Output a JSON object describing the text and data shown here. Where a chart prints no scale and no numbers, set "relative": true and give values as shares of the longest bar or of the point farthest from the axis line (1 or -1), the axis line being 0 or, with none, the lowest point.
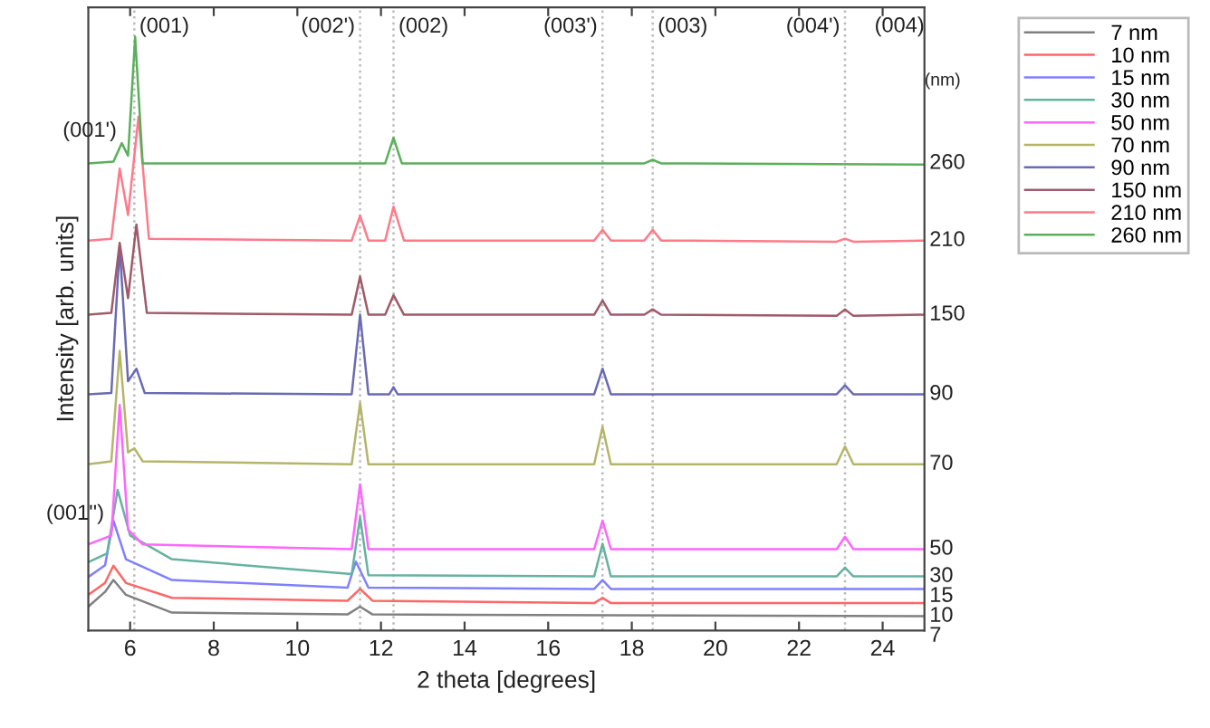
{
  "chart_data": {
    "type": "line",
    "relative": true,
    "xlabel": "2 theta [degrees]",
    "ylabel": "Intensity [arb. units]",
    "xlim": [
      5,
      25
    ],
    "xticks": [
      6,
      8,
      10,
      12,
      14,
      16,
      18,
      20,
      22,
      24
    ],
    "tick_labels": "x",
    "grid": false,
    "legend": "top right",
    "line_style": "solid",
    "marker": "none",
    "series": [
      {
        "name": "7 nm",
        "color": "#808080",
        "x": [
          5,
          5.4,
          5.6,
          5.9,
          7,
          11.2,
          11.5,
          11.8,
          25
        ],
        "values": [
          0.04,
          0.065,
          0.085,
          0.06,
          0.03,
          0.027,
          0.04,
          0.027,
          0.024
        ]
      },
      {
        "name": "10 nm",
        "color": "#ff6666",
        "x": [
          5,
          5.4,
          5.6,
          5.9,
          7,
          11.2,
          11.5,
          11.8,
          17.1,
          17.3,
          17.5,
          25
        ],
        "values": [
          0.06,
          0.08,
          0.109,
          0.08,
          0.055,
          0.05,
          0.07,
          0.05,
          0.046,
          0.055,
          0.046,
          0.046
        ]
      },
      {
        "name": "15 nm",
        "color": "#8080ff",
        "x": [
          5,
          5.4,
          5.6,
          5.9,
          7,
          11.2,
          11.4,
          11.7,
          17.1,
          17.3,
          17.5,
          25
        ],
        "values": [
          0.09,
          0.11,
          0.185,
          0.12,
          0.085,
          0.072,
          0.116,
          0.072,
          0.07,
          0.085,
          0.07,
          0.07
        ]
      },
      {
        "name": "30 nm",
        "color": "#66b2a0",
        "x": [
          5,
          5.45,
          5.7,
          6.0,
          7,
          11.3,
          11.5,
          11.7,
          17.1,
          17.3,
          17.5,
          22.9,
          23.1,
          23.3,
          25
        ],
        "values": [
          0.115,
          0.13,
          0.237,
          0.16,
          0.12,
          0.095,
          0.191,
          0.093,
          0.091,
          0.146,
          0.091,
          0.091,
          0.106,
          0.091,
          0.091
        ]
      },
      {
        "name": "50 nm",
        "color": "#ff66ff",
        "x": [
          5,
          5.55,
          5.75,
          5.95,
          6.3,
          11.3,
          11.5,
          11.7,
          17.1,
          17.3,
          17.5,
          22.9,
          23.1,
          23.3,
          25
        ],
        "values": [
          0.145,
          0.16,
          0.38,
          0.17,
          0.145,
          0.137,
          0.246,
          0.137,
          0.137,
          0.185,
          0.137,
          0.137,
          0.158,
          0.137,
          0.137
        ]
      },
      {
        "name": "70 nm",
        "color": "#b5b56a",
        "x": [
          5,
          5.55,
          5.75,
          5.95,
          6.1,
          6.3,
          11.3,
          11.5,
          11.7,
          17.1,
          17.3,
          17.5,
          22.9,
          23.1,
          23.3,
          25
        ],
        "values": [
          0.28,
          0.285,
          0.471,
          0.3,
          0.307,
          0.285,
          0.28,
          0.383,
          0.28,
          0.28,
          0.343,
          0.28,
          0.28,
          0.31,
          0.28,
          0.28
        ]
      },
      {
        "name": "90 nm",
        "color": "#6a6ab5",
        "x": [
          5,
          5.55,
          5.75,
          5.95,
          6.15,
          6.35,
          11.3,
          11.5,
          11.7,
          12.2,
          12.3,
          12.4,
          17.1,
          17.3,
          17.5,
          22.9,
          23.1,
          23.3,
          25
        ],
        "values": [
          0.398,
          0.4,
          0.647,
          0.42,
          0.441,
          0.4,
          0.398,
          0.532,
          0.398,
          0.398,
          0.41,
          0.398,
          0.398,
          0.441,
          0.398,
          0.398,
          0.413,
          0.398,
          0.398
        ]
      },
      {
        "name": "150 nm",
        "color": "#a05a6a",
        "x": [
          5,
          5.55,
          5.75,
          5.95,
          6.15,
          6.4,
          11.3,
          11.5,
          11.7,
          12.1,
          12.3,
          12.55,
          17.1,
          17.3,
          17.5,
          18.3,
          18.5,
          18.7,
          22.9,
          23.1,
          23.3,
          25
        ],
        "values": [
          0.532,
          0.535,
          0.653,
          0.56,
          0.684,
          0.535,
          0.532,
          0.596,
          0.532,
          0.532,
          0.565,
          0.532,
          0.532,
          0.556,
          0.532,
          0.532,
          0.541,
          0.532,
          0.53,
          0.541,
          0.53,
          0.532
        ]
      },
      {
        "name": "210 nm",
        "color": "#ff7a8a",
        "x": [
          5,
          5.55,
          5.75,
          5.95,
          6.2,
          6.45,
          11.3,
          11.5,
          11.7,
          12.1,
          12.3,
          12.55,
          17.1,
          17.3,
          17.5,
          18.3,
          18.5,
          18.7,
          22.9,
          23.1,
          23.3,
          25
        ],
        "values": [
          0.657,
          0.66,
          0.778,
          0.7,
          0.866,
          0.66,
          0.657,
          0.699,
          0.657,
          0.657,
          0.714,
          0.657,
          0.657,
          0.675,
          0.657,
          0.657,
          0.675,
          0.657,
          0.655,
          0.66,
          0.655,
          0.657
        ]
      },
      {
        "name": "260 nm",
        "color": "#5ab05a",
        "x": [
          5,
          5.6,
          5.8,
          5.95,
          6.12,
          6.3,
          12.1,
          12.3,
          12.5,
          18.3,
          18.5,
          18.7,
          25
        ],
        "values": [
          0.787,
          0.79,
          0.821,
          0.8,
          1.0,
          0.787,
          0.787,
          0.83,
          0.787,
          0.787,
          0.793,
          0.787,
          0.785
        ]
      }
    ],
    "ref_lines": [
      {
        "axis": "x",
        "value": 6.1,
        "color": "#bbbbbb",
        "line_style": "dotted"
      },
      {
        "axis": "x",
        "value": 11.5,
        "color": "#bbbbbb",
        "line_style": "dotted"
      },
      {
        "axis": "x",
        "value": 12.3,
        "color": "#bbbbbb",
        "line_style": "dotted"
      },
      {
        "axis": "x",
        "value": 17.3,
        "color": "#bbbbbb",
        "line_style": "dotted"
      },
      {
        "axis": "x",
        "value": 18.5,
        "color": "#bbbbbb",
        "line_style": "dotted"
      },
      {
        "axis": "x",
        "value": 23.1,
        "color": "#bbbbbb",
        "line_style": "dotted"
      }
    ],
    "annotations": [
      {
        "text": "(001)",
        "x": 6.1,
        "y": 1.0
      },
      {
        "text": "(002')",
        "x": 11.5,
        "y": 1.0
      },
      {
        "text": "(002)",
        "x": 12.3,
        "y": 1.0
      },
      {
        "text": "(003')",
        "x": 17.3,
        "y": 1.0
      },
      {
        "text": "(003)",
        "x": 18.5,
        "y": 1.0
      },
      {
        "text": "(004')",
        "x": 23.1,
        "y": 1.0
      },
      "(004)",
      {
        "text": "(001')",
        "x": 5.8,
        "y": 0.82
      },
      {
        "text": "(001'')",
        "x": 5.5,
        "y": 0.175
      },
      "(nm)",
      {
        "text": "260",
        "x": 25,
        "y": 0.787
      },
      {
        "text": "210",
        "x": 25,
        "y": 0.657
      },
      {
        "text": "150",
        "x": 25,
        "y": 0.532
      },
      {
        "text": "90",
        "x": 25,
        "y": 0.398
      },
      {
        "text": "70",
        "x": 25,
        "y": 0.28
      },
      {
        "text": "50",
        "x": 25,
        "y": 0.137
      },
      {
        "text": "30",
        "x": 25,
        "y": 0.091
      },
      {
        "text": "15",
        "x": 25,
        "y": 0.07
      },
      {
        "text": "10",
        "x": 25,
        "y": 0.046
      },
      {
        "text": "7",
        "x": 25,
        "y": 0.024
      }
    ]
  }
}
